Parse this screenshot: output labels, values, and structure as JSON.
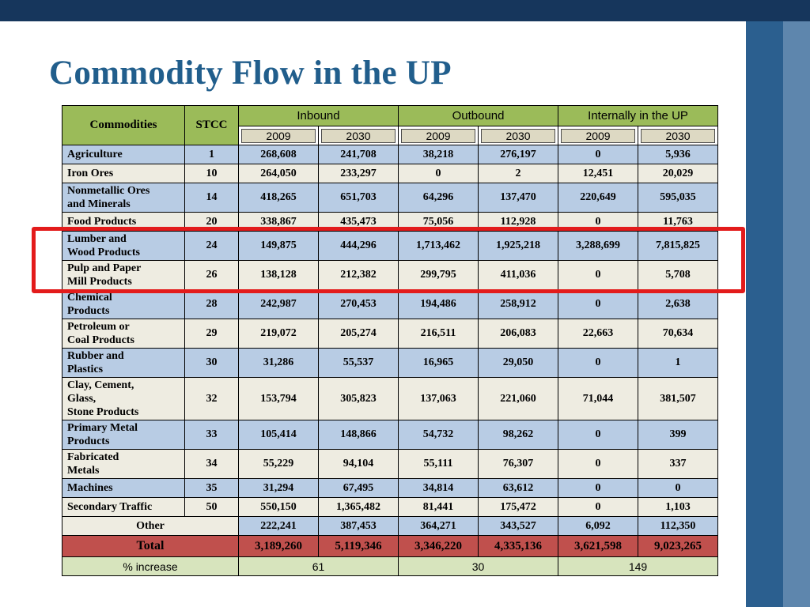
{
  "slide": {
    "title": "Commodity Flow in the UP"
  },
  "colors": {
    "bar_navy": "#16365C",
    "band_blue": "#2B5F8F",
    "strip_blue": "#5E86AD",
    "title_blue": "#215E8C",
    "header_green": "#9BBB59",
    "year_tan": "#DDD9C3",
    "row_blue": "#B8CCE4",
    "row_cream": "#EEECE1",
    "total_red": "#C0504D",
    "increase_green": "#D7E4BD",
    "highlight_red": "#E31B1B"
  },
  "table": {
    "headers": {
      "commodities": "Commodities",
      "stcc": "STCC",
      "groups": [
        {
          "label": "Inbound",
          "years": [
            "2009",
            "2030"
          ]
        },
        {
          "label": "Outbound",
          "years": [
            "2009",
            "2030"
          ]
        },
        {
          "label": "Internally in the UP",
          "years": [
            "2009",
            "2030"
          ]
        }
      ]
    },
    "rows": [
      {
        "name": "Agriculture",
        "stcc": "1",
        "values": [
          "268,608",
          "241,708",
          "38,218",
          "276,197",
          "0",
          "5,936"
        ]
      },
      {
        "name": "Iron Ores",
        "stcc": "10",
        "values": [
          "264,050",
          "233,297",
          "0",
          "2",
          "12,451",
          "20,029"
        ]
      },
      {
        "name": "Nonmetallic Ores\nand Minerals",
        "stcc": "14",
        "values": [
          "418,265",
          "651,703",
          "64,296",
          "137,470",
          "220,649",
          "595,035"
        ]
      },
      {
        "name": "Food Products",
        "stcc": "20",
        "values": [
          "338,867",
          "435,473",
          "75,056",
          "112,928",
          "0",
          "11,763"
        ]
      },
      {
        "name": "Lumber and\nWood Products",
        "stcc": "24",
        "values": [
          "149,875",
          "444,296",
          "1,713,462",
          "1,925,218",
          "3,288,699",
          "7,815,825"
        ],
        "highlighted": true
      },
      {
        "name": "Pulp and Paper\nMill  Products",
        "stcc": "26",
        "values": [
          "138,128",
          "212,382",
          "299,795",
          "411,036",
          "0",
          "5,708"
        ],
        "highlighted": true
      },
      {
        "name": "Chemical\nProducts",
        "stcc": "28",
        "values": [
          "242,987",
          "270,453",
          "194,486",
          "258,912",
          "0",
          "2,638"
        ]
      },
      {
        "name": "Petroleum or\nCoal Products",
        "stcc": "29",
        "values": [
          "219,072",
          "205,274",
          "216,511",
          "206,083",
          "22,663",
          "70,634"
        ]
      },
      {
        "name": "Rubber and\nPlastics",
        "stcc": "30",
        "values": [
          "31,286",
          "55,537",
          "16,965",
          "29,050",
          "0",
          "1"
        ]
      },
      {
        "name": "Clay, Cement,\nGlass,\nStone Products",
        "stcc": "32",
        "values": [
          "153,794",
          "305,823",
          "137,063",
          "221,060",
          "71,044",
          "381,507"
        ]
      },
      {
        "name": "Primary Metal\nProducts",
        "stcc": "33",
        "values": [
          "105,414",
          "148,866",
          "54,732",
          "98,262",
          "0",
          "399"
        ]
      },
      {
        "name": "Fabricated\nMetals",
        "stcc": "34",
        "values": [
          "55,229",
          "94,104",
          "55,111",
          "76,307",
          "0",
          "337"
        ]
      },
      {
        "name": "Machines",
        "stcc": "35",
        "values": [
          "31,294",
          "67,495",
          "34,814",
          "63,612",
          "0",
          "0"
        ]
      },
      {
        "name": "Secondary Traffic",
        "stcc": "50",
        "values": [
          "550,150",
          "1,365,482",
          "81,441",
          "175,472",
          "0",
          "1,103"
        ]
      }
    ],
    "other_row": {
      "label": "Other",
      "values": [
        "222,241",
        "387,453",
        "364,271",
        "343,527",
        "6,092",
        "112,350"
      ]
    },
    "total_row": {
      "label": "Total",
      "values": [
        "3,189,260",
        "5,119,346",
        "3,346,220",
        "4,335,136",
        "3,621,598",
        "9,023,265"
      ]
    },
    "increase_row": {
      "label": "% increase",
      "values": [
        "61",
        "30",
        "149"
      ]
    }
  }
}
